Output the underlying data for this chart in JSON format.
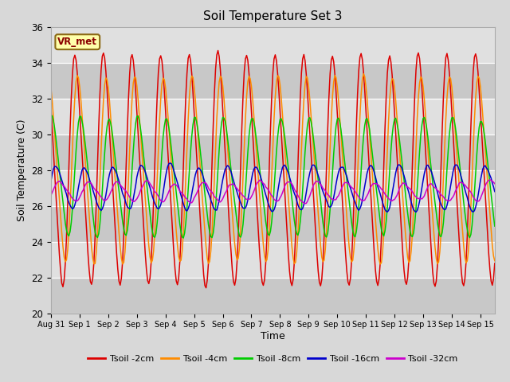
{
  "title": "Soil Temperature Set 3",
  "xlabel": "Time",
  "ylabel": "Soil Temperature (C)",
  "ylim": [
    20,
    36
  ],
  "yticks": [
    20,
    22,
    24,
    26,
    28,
    30,
    32,
    34,
    36
  ],
  "annotation": "VR_met",
  "fig_bg_color": "#d8d8d8",
  "plot_bg_color": "#dcdcdc",
  "series": [
    {
      "label": "Tsoil -2cm",
      "color": "#dd0000",
      "amplitude": 6.2,
      "mean": 28.0,
      "phase": 0.62,
      "period": 1.0
    },
    {
      "label": "Tsoil -4cm",
      "color": "#ff8c00",
      "amplitude": 5.0,
      "mean": 28.0,
      "phase": 0.72,
      "period": 1.0
    },
    {
      "label": "Tsoil -8cm",
      "color": "#00cc00",
      "amplitude": 3.2,
      "mean": 27.6,
      "phase": 0.82,
      "period": 1.0
    },
    {
      "label": "Tsoil -16cm",
      "color": "#0000cc",
      "amplitude": 1.2,
      "mean": 27.0,
      "phase": 0.95,
      "period": 1.0
    },
    {
      "label": "Tsoil -32cm",
      "color": "#cc00cc",
      "amplitude": 0.5,
      "mean": 26.8,
      "phase": 0.1,
      "period": 1.0
    }
  ],
  "n_days": 15.5,
  "x_tick_labels": [
    "Aug 31",
    "Sep 1",
    "Sep 2",
    "Sep 3",
    "Sep 4",
    "Sep 5",
    "Sep 6",
    "Sep 7",
    "Sep 8",
    "Sep 9",
    "Sep 10",
    "Sep 11",
    "Sep 12",
    "Sep 13",
    "Sep 14",
    "Sep 15"
  ],
  "legend_colors": [
    "#dd0000",
    "#ff8c00",
    "#00cc00",
    "#0000cc",
    "#cc00cc"
  ],
  "legend_labels": [
    "Tsoil -2cm",
    "Tsoil -4cm",
    "Tsoil -8cm",
    "Tsoil -16cm",
    "Tsoil -32cm"
  ]
}
